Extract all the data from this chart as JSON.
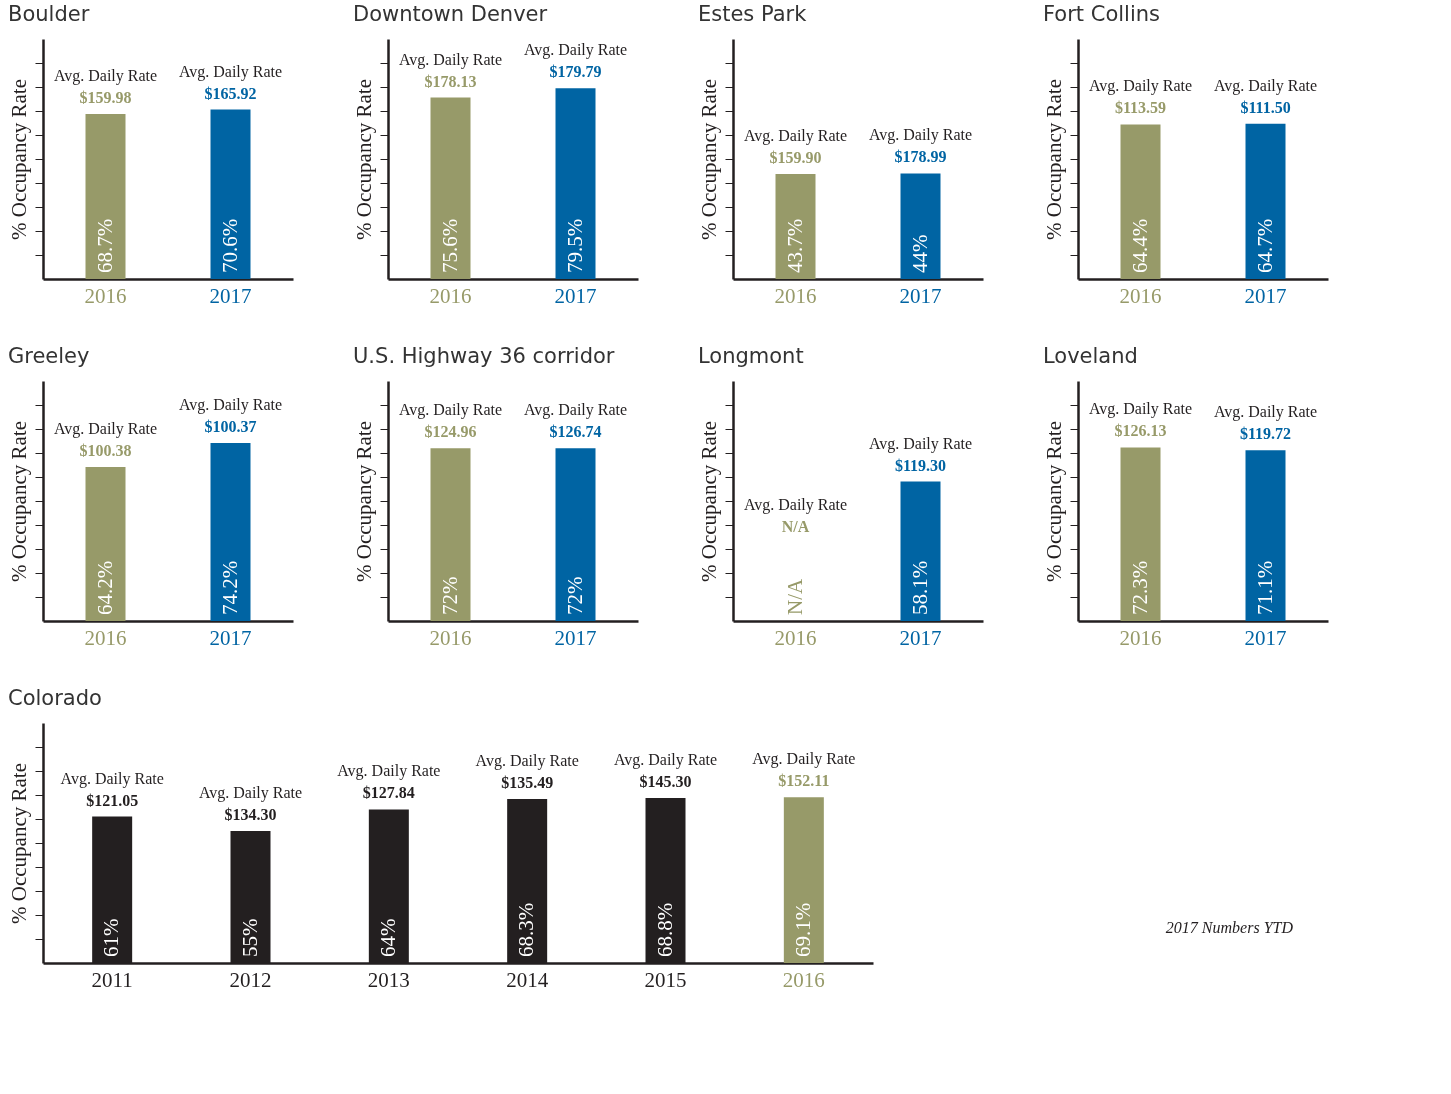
{
  "chart_data": [
    {
      "type": "bar",
      "title": "Boulder",
      "ylabel": "% Occupancy Rate",
      "categories": [
        "2016",
        "2017"
      ],
      "values": [
        68.7,
        70.6
      ],
      "colors": [
        "#979a69",
        "#0064a3"
      ],
      "value_labels": [
        "68.7%",
        "70.6%"
      ],
      "ylim": [
        0,
        100
      ],
      "yticks": [
        {
          "value": 10,
          "label": null
        },
        {
          "value": 20,
          "label": null
        },
        {
          "value": 30,
          "label": null
        },
        {
          "value": 40,
          "label": null
        },
        {
          "value": 50,
          "label": null
        },
        {
          "value": 60,
          "label": null
        },
        {
          "value": 70,
          "label": null
        },
        {
          "value": 80,
          "label": null
        },
        {
          "value": 90,
          "label": null
        }
      ],
      "tick_labels": "x",
      "annotations": [
        {
          "text": "Avg. Daily Rate",
          "x": "2016",
          "y": 68.7
        },
        {
          "text": "$159.98",
          "x": "2016",
          "y": 68.7
        },
        {
          "text": "Avg. Daily Rate",
          "x": "2017",
          "y": 70.6
        },
        {
          "text": "$165.92",
          "x": "2017",
          "y": 70.6
        }
      ]
    },
    {
      "type": "bar",
      "title": "Downtown Denver",
      "ylabel": "% Occupancy Rate",
      "categories": [
        "2016",
        "2017"
      ],
      "values": [
        75.6,
        79.5
      ],
      "colors": [
        "#979a69",
        "#0064a3"
      ],
      "value_labels": [
        "75.6%",
        "79.5%"
      ],
      "ylim": [
        0,
        100
      ],
      "yticks": [
        {
          "value": 10,
          "label": null
        },
        {
          "value": 20,
          "label": null
        },
        {
          "value": 30,
          "label": null
        },
        {
          "value": 40,
          "label": null
        },
        {
          "value": 50,
          "label": null
        },
        {
          "value": 60,
          "label": null
        },
        {
          "value": 70,
          "label": null
        },
        {
          "value": 80,
          "label": null
        },
        {
          "value": 90,
          "label": null
        }
      ],
      "tick_labels": "x",
      "annotations": [
        {
          "text": "Avg. Daily Rate",
          "x": "2016",
          "y": 75.6
        },
        {
          "text": "$178.13",
          "x": "2016",
          "y": 75.6
        },
        {
          "text": "Avg. Daily Rate",
          "x": "2017",
          "y": 79.5
        },
        {
          "text": "$179.79",
          "x": "2017",
          "y": 79.5
        }
      ]
    },
    {
      "type": "bar",
      "title": "Estes Park",
      "ylabel": "% Occupancy Rate",
      "categories": [
        "2016",
        "2017"
      ],
      "values": [
        43.7,
        44
      ],
      "colors": [
        "#979a69",
        "#0064a3"
      ],
      "value_labels": [
        "43.7%",
        "44%"
      ],
      "ylim": [
        0,
        100
      ],
      "yticks": [
        {
          "value": 10,
          "label": null
        },
        {
          "value": 20,
          "label": null
        },
        {
          "value": 30,
          "label": null
        },
        {
          "value": 40,
          "label": null
        },
        {
          "value": 50,
          "label": null
        },
        {
          "value": 60,
          "label": null
        },
        {
          "value": 70,
          "label": null
        },
        {
          "value": 80,
          "label": null
        },
        {
          "value": 90,
          "label": null
        }
      ],
      "tick_labels": "x",
      "annotations": [
        {
          "text": "Avg. Daily Rate",
          "x": "2016",
          "y": 43.7
        },
        {
          "text": "$159.90",
          "x": "2016",
          "y": 43.7
        },
        {
          "text": "Avg. Daily Rate",
          "x": "2017",
          "y": 44
        },
        {
          "text": "$178.99",
          "x": "2017",
          "y": 44
        }
      ]
    },
    {
      "type": "bar",
      "title": "Fort Collins",
      "ylabel": "% Occupancy Rate",
      "categories": [
        "2016",
        "2017"
      ],
      "values": [
        64.4,
        64.7
      ],
      "colors": [
        "#979a69",
        "#0064a3"
      ],
      "value_labels": [
        "64.4%",
        "64.7%"
      ],
      "ylim": [
        0,
        100
      ],
      "yticks": [
        {
          "value": 10,
          "label": null
        },
        {
          "value": 20,
          "label": null
        },
        {
          "value": 30,
          "label": null
        },
        {
          "value": 40,
          "label": null
        },
        {
          "value": 50,
          "label": null
        },
        {
          "value": 60,
          "label": null
        },
        {
          "value": 70,
          "label": null
        },
        {
          "value": 80,
          "label": null
        },
        {
          "value": 90,
          "label": null
        }
      ],
      "tick_labels": "x",
      "annotations": [
        {
          "text": "Avg. Daily Rate",
          "x": "2016",
          "y": 64.4
        },
        {
          "text": "$113.59",
          "x": "2016",
          "y": 64.4
        },
        {
          "text": "Avg. Daily Rate",
          "x": "2017",
          "y": 64.7
        },
        {
          "text": "$111.50",
          "x": "2017",
          "y": 64.7
        }
      ]
    },
    {
      "type": "bar",
      "title": "Greeley",
      "ylabel": "% Occupancy Rate",
      "categories": [
        "2016",
        "2017"
      ],
      "values": [
        64.2,
        74.2
      ],
      "colors": [
        "#979a69",
        "#0064a3"
      ],
      "value_labels": [
        "64.2%",
        "74.2%"
      ],
      "ylim": [
        0,
        100
      ],
      "yticks": [
        {
          "value": 10,
          "label": null
        },
        {
          "value": 20,
          "label": null
        },
        {
          "value": 30,
          "label": null
        },
        {
          "value": 40,
          "label": null
        },
        {
          "value": 50,
          "label": null
        },
        {
          "value": 60,
          "label": null
        },
        {
          "value": 70,
          "label": null
        },
        {
          "value": 80,
          "label": null
        },
        {
          "value": 90,
          "label": null
        }
      ],
      "tick_labels": "x",
      "annotations": [
        {
          "text": "Avg. Daily Rate",
          "x": "2016",
          "y": 64.2
        },
        {
          "text": "$100.38",
          "x": "2016",
          "y": 64.2
        },
        {
          "text": "Avg. Daily Rate",
          "x": "2017",
          "y": 74.2
        },
        {
          "text": "$100.37",
          "x": "2017",
          "y": 74.2
        }
      ]
    },
    {
      "type": "bar",
      "title": "U.S. Highway 36 corridor",
      "ylabel": "% Occupancy Rate",
      "categories": [
        "2016",
        "2017"
      ],
      "values": [
        72,
        72
      ],
      "colors": [
        "#979a69",
        "#0064a3"
      ],
      "value_labels": [
        "72%",
        "72%"
      ],
      "ylim": [
        0,
        100
      ],
      "yticks": [
        {
          "value": 10,
          "label": null
        },
        {
          "value": 20,
          "label": null
        },
        {
          "value": 30,
          "label": null
        },
        {
          "value": 40,
          "label": null
        },
        {
          "value": 50,
          "label": null
        },
        {
          "value": 60,
          "label": null
        },
        {
          "value": 70,
          "label": null
        },
        {
          "value": 80,
          "label": null
        },
        {
          "value": 90,
          "label": null
        }
      ],
      "tick_labels": "x",
      "annotations": [
        {
          "text": "Avg. Daily Rate",
          "x": "2016",
          "y": 72
        },
        {
          "text": "$124.96",
          "x": "2016",
          "y": 72
        },
        {
          "text": "Avg. Daily Rate",
          "x": "2017",
          "y": 72
        },
        {
          "text": "$126.74",
          "x": "2017",
          "y": 72
        }
      ]
    },
    {
      "type": "bar",
      "title": "Longmont",
      "ylabel": "% Occupancy Rate",
      "categories": [
        "2016",
        "2017"
      ],
      "values": [
        null,
        58.1
      ],
      "colors": [
        "#979a69",
        "#0064a3"
      ],
      "value_labels": [
        "N/A",
        "58.1%"
      ],
      "ylim": [
        0,
        100
      ],
      "yticks": [
        {
          "value": 10,
          "label": null
        },
        {
          "value": 20,
          "label": null
        },
        {
          "value": 30,
          "label": null
        },
        {
          "value": 40,
          "label": null
        },
        {
          "value": 50,
          "label": null
        },
        {
          "value": 60,
          "label": null
        },
        {
          "value": 70,
          "label": null
        },
        {
          "value": 80,
          "label": null
        },
        {
          "value": 90,
          "label": null
        }
      ],
      "tick_labels": "x",
      "annotations": [
        "Avg. Daily Rate",
        "N/A",
        {
          "text": "Avg. Daily Rate",
          "x": "2017",
          "y": 58.1
        },
        {
          "text": "$119.30",
          "x": "2017",
          "y": 58.1
        }
      ]
    },
    {
      "type": "bar",
      "title": "Loveland",
      "ylabel": "% Occupancy Rate",
      "categories": [
        "2016",
        "2017"
      ],
      "values": [
        72.3,
        71.1
      ],
      "colors": [
        "#979a69",
        "#0064a3"
      ],
      "value_labels": [
        "72.3%",
        "71.1%"
      ],
      "ylim": [
        0,
        100
      ],
      "yticks": [
        {
          "value": 10,
          "label": null
        },
        {
          "value": 20,
          "label": null
        },
        {
          "value": 30,
          "label": null
        },
        {
          "value": 40,
          "label": null
        },
        {
          "value": 50,
          "label": null
        },
        {
          "value": 60,
          "label": null
        },
        {
          "value": 70,
          "label": null
        },
        {
          "value": 80,
          "label": null
        },
        {
          "value": 90,
          "label": null
        }
      ],
      "tick_labels": "x",
      "annotations": [
        {
          "text": "Avg. Daily Rate",
          "x": "2016",
          "y": 72.3
        },
        {
          "text": "$126.13",
          "x": "2016",
          "y": 72.3
        },
        {
          "text": "Avg. Daily Rate",
          "x": "2017",
          "y": 71.1
        },
        {
          "text": "$119.72",
          "x": "2017",
          "y": 71.1
        }
      ]
    },
    {
      "type": "bar",
      "title": "Colorado",
      "ylabel": "% Occupancy Rate",
      "categories": [
        "2011",
        "2012",
        "2013",
        "2014",
        "2015",
        "2016"
      ],
      "values": [
        61,
        55,
        64,
        68.3,
        68.8,
        69.1
      ],
      "colors": [
        "#231f20",
        "#231f20",
        "#231f20",
        "#231f20",
        "#231f20",
        "#979a69"
      ],
      "value_labels": [
        "61%",
        "55%",
        "64%",
        "68.3%",
        "68.8%",
        "69.1%"
      ],
      "ylim": [
        0,
        100
      ],
      "yticks": [
        {
          "value": 10,
          "label": null
        },
        {
          "value": 20,
          "label": null
        },
        {
          "value": 30,
          "label": null
        },
        {
          "value": 40,
          "label": null
        },
        {
          "value": 50,
          "label": null
        },
        {
          "value": 60,
          "label": null
        },
        {
          "value": 70,
          "label": null
        },
        {
          "value": 80,
          "label": null
        },
        {
          "value": 90,
          "label": null
        }
      ],
      "tick_labels": "x",
      "annotations": [
        {
          "text": "Avg. Daily Rate",
          "x": "2011",
          "y": 61
        },
        {
          "text": "$121.05",
          "x": "2011",
          "y": 61
        },
        {
          "text": "Avg. Daily Rate",
          "x": "2012",
          "y": 55
        },
        {
          "text": "$134.30",
          "x": "2012",
          "y": 55
        },
        {
          "text": "Avg. Daily Rate",
          "x": "2013",
          "y": 64
        },
        {
          "text": "$127.84",
          "x": "2013",
          "y": 64
        },
        {
          "text": "Avg. Daily Rate",
          "x": "2014",
          "y": 68.3
        },
        {
          "text": "$135.49",
          "x": "2014",
          "y": 68.3
        },
        {
          "text": "Avg. Daily Rate",
          "x": "2015",
          "y": 68.8
        },
        {
          "text": "$145.30",
          "x": "2015",
          "y": 68.8
        },
        {
          "text": "Avg. Daily Rate",
          "x": "2016",
          "y": 69.1
        },
        {
          "text": "$152.11",
          "x": "2016",
          "y": 69.1
        },
        "2017 Numbers YTD"
      ]
    }
  ]
}
